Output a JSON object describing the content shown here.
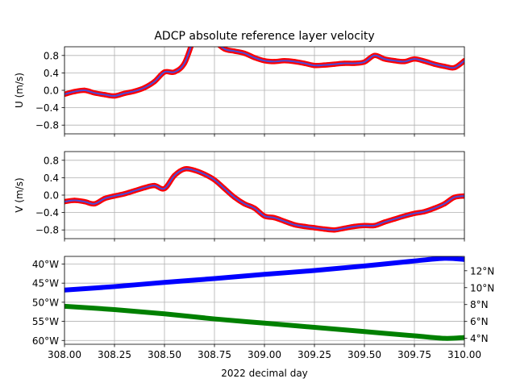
{
  "figure": {
    "title": "ADCP absolute reference layer velocity",
    "xlabel": "2022 decimal day"
  },
  "chart_data": [
    {
      "type": "line",
      "id": "u",
      "ylabel": "U (m/s)",
      "xlim": [
        308.0,
        310.0
      ],
      "ylim": [
        -1.0,
        1.0
      ],
      "yticks": [
        -0.8,
        -0.4,
        0.0,
        0.4,
        0.8
      ],
      "ytick_labels": [
        "−0.8",
        "−0.4",
        "0.0",
        "0.4",
        "0.8"
      ],
      "grid": true,
      "series": [
        {
          "marker_color": "#ff0000",
          "line_color": "#4b4bd6",
          "x": [
            308.0,
            308.05,
            308.1,
            308.15,
            308.2,
            308.25,
            308.3,
            308.35,
            308.4,
            308.45,
            308.5,
            308.55,
            308.6,
            308.65,
            308.7,
            308.75,
            308.8,
            308.85,
            308.9,
            308.95,
            309.0,
            309.05,
            309.1,
            309.15,
            309.2,
            309.25,
            309.3,
            309.35,
            309.4,
            309.45,
            309.5,
            309.55,
            309.6,
            309.65,
            309.7,
            309.75,
            309.8,
            309.85,
            309.9,
            309.95,
            310.0
          ],
          "y": [
            -0.09,
            -0.03,
            0.0,
            -0.06,
            -0.1,
            -0.13,
            -0.07,
            -0.02,
            0.06,
            0.2,
            0.42,
            0.42,
            0.62,
            1.2,
            1.45,
            1.15,
            0.95,
            0.9,
            0.85,
            0.75,
            0.68,
            0.66,
            0.68,
            0.66,
            0.62,
            0.57,
            0.58,
            0.6,
            0.62,
            0.62,
            0.65,
            0.8,
            0.72,
            0.68,
            0.66,
            0.72,
            0.67,
            0.6,
            0.55,
            0.52,
            0.68
          ]
        }
      ]
    },
    {
      "type": "line",
      "id": "v",
      "ylabel": "V (m/s)",
      "xlim": [
        308.0,
        310.0
      ],
      "ylim": [
        -1.0,
        1.0
      ],
      "yticks": [
        -0.8,
        -0.4,
        0.0,
        0.4,
        0.8
      ],
      "ytick_labels": [
        "−0.8",
        "−0.4",
        "0.0",
        "0.4",
        "0.8"
      ],
      "grid": true,
      "series": [
        {
          "marker_color": "#ff0000",
          "line_color": "#4b4bd6",
          "x": [
            308.0,
            308.05,
            308.1,
            308.15,
            308.2,
            308.25,
            308.3,
            308.35,
            308.4,
            308.45,
            308.5,
            308.55,
            308.6,
            308.65,
            308.7,
            308.75,
            308.8,
            308.85,
            308.9,
            308.95,
            309.0,
            309.05,
            309.1,
            309.15,
            309.2,
            309.25,
            309.3,
            309.35,
            309.4,
            309.45,
            309.5,
            309.55,
            309.6,
            309.65,
            309.7,
            309.75,
            309.8,
            309.85,
            309.9,
            309.95,
            310.0
          ],
          "y": [
            -0.15,
            -0.12,
            -0.15,
            -0.2,
            -0.08,
            -0.02,
            0.03,
            0.1,
            0.17,
            0.22,
            0.15,
            0.45,
            0.6,
            0.57,
            0.48,
            0.35,
            0.15,
            -0.05,
            -0.2,
            -0.3,
            -0.48,
            -0.52,
            -0.6,
            -0.68,
            -0.72,
            -0.75,
            -0.78,
            -0.8,
            -0.76,
            -0.72,
            -0.7,
            -0.7,
            -0.62,
            -0.55,
            -0.48,
            -0.42,
            -0.38,
            -0.3,
            -0.2,
            -0.05,
            -0.02
          ]
        }
      ]
    },
    {
      "type": "line",
      "id": "position",
      "xlim": [
        308.0,
        310.0
      ],
      "xticks": [
        308.0,
        308.25,
        308.5,
        308.75,
        309.0,
        309.25,
        309.5,
        309.75,
        310.0
      ],
      "xtick_labels": [
        "308.00",
        "308.25",
        "308.50",
        "308.75",
        "309.00",
        "309.25",
        "309.50",
        "309.75",
        "310.00"
      ],
      "grid": true,
      "left_axis": {
        "color": "#0000ff",
        "ylim": [
          -61,
          -38
        ],
        "yticks": [
          -60,
          -55,
          -50,
          -45,
          -40
        ],
        "ytick_labels": [
          "60°W",
          "55°W",
          "50°W",
          "45°W",
          "40°W"
        ]
      },
      "right_axis": {
        "color": "#008000",
        "ylim": [
          3.3,
          13.7
        ],
        "yticks": [
          4,
          6,
          8,
          10,
          12
        ],
        "ytick_labels": [
          "4°N",
          "6°N",
          "8°N",
          "10°N",
          "12°N"
        ]
      },
      "series": [
        {
          "axis": "left",
          "color": "#0000ff",
          "x": [
            308.0,
            308.25,
            308.5,
            308.75,
            309.0,
            309.25,
            309.5,
            309.75,
            309.9,
            310.0
          ],
          "y": [
            -46.8,
            -45.9,
            -44.8,
            -43.8,
            -42.7,
            -41.7,
            -40.5,
            -39.2,
            -38.5,
            -38.8
          ]
        },
        {
          "axis": "right",
          "color": "#008000",
          "x": [
            308.0,
            308.25,
            308.5,
            308.75,
            309.0,
            309.25,
            309.5,
            309.75,
            309.9,
            310.0
          ],
          "y": [
            7.8,
            7.4,
            6.9,
            6.3,
            5.8,
            5.3,
            4.8,
            4.3,
            4.0,
            4.1
          ]
        }
      ]
    }
  ]
}
